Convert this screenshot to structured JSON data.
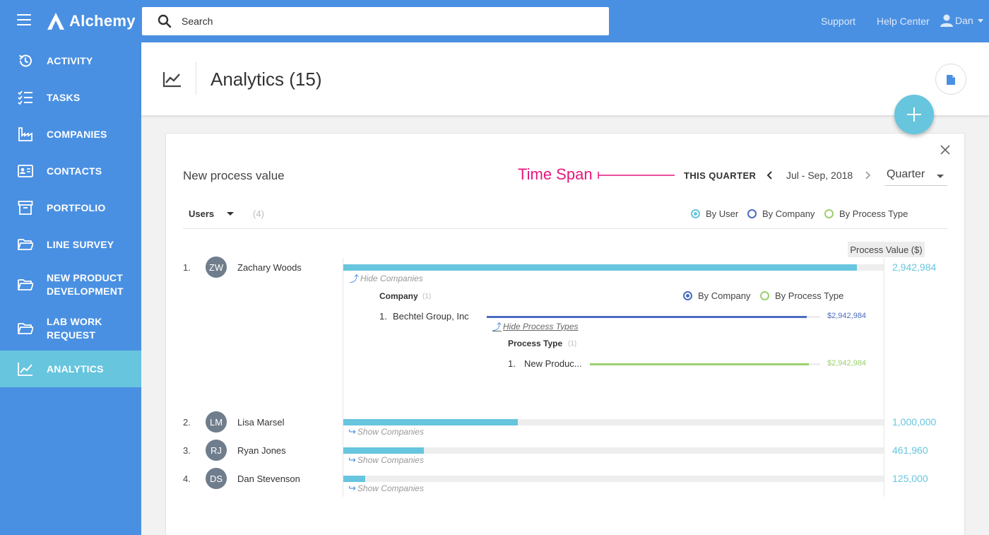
{
  "app": {
    "name": "Alchemy"
  },
  "search": {
    "placeholder": "Search"
  },
  "topnav": {
    "support": "Support",
    "help": "Help Center",
    "user": "Dan"
  },
  "sidebar": {
    "items": [
      {
        "label": "ACTIVITY"
      },
      {
        "label": "TASKS"
      },
      {
        "label": "COMPANIES"
      },
      {
        "label": "CONTACTS"
      },
      {
        "label": "PORTFOLIO"
      },
      {
        "label": "LINE SURVEY"
      },
      {
        "label": "NEW PRODUCT DEVELOPMENT"
      },
      {
        "label": "LAB WORK REQUEST"
      },
      {
        "label": "ANALYTICS"
      }
    ]
  },
  "page": {
    "title": "Analytics (15)"
  },
  "card": {
    "title": "New process value",
    "annotation": "Time Span",
    "period_label": "THIS QUARTER",
    "range": "Jul - Sep, 2018",
    "period_select": "Quarter",
    "group_select": "Users",
    "group_count": "(4)",
    "radios": {
      "by_user": "By User",
      "by_company": "By Company",
      "by_process_type": "By Process Type"
    },
    "value_header": "Process Value ($)",
    "hide_companies": "Hide Companies",
    "show_companies": "Show Companies",
    "rows": [
      {
        "rank": "1.",
        "initials": "ZW",
        "name": "Zachary Woods",
        "value": "2,942,984",
        "fraction": 0.9497
      },
      {
        "rank": "2.",
        "initials": "LM",
        "name": "Lisa Marsel",
        "value": "1,000,000",
        "fraction": 0.3229
      },
      {
        "rank": "3.",
        "initials": "RJ",
        "name": "Ryan Jones",
        "value": "461,960",
        "fraction": 0.1496
      },
      {
        "rank": "4.",
        "initials": "DS",
        "name": "Dan Stevenson",
        "value": "125,000",
        "fraction": 0.0404
      }
    ],
    "company_section": {
      "header": "Company",
      "count": "(1)",
      "radio_company": "By Company",
      "radio_process": "By Process Type",
      "item_rank": "1.",
      "item_name": "Bechtel Group, Inc",
      "item_value": "$2,942,984",
      "item_fraction": 0.96,
      "hide_process_types": "Hide Process Types"
    },
    "process_section": {
      "header": "Process Type",
      "count": "(1)",
      "item_rank": "1.",
      "item_name": "New Produc...",
      "item_value": "$2,942,984",
      "item_fraction": 0.95
    }
  },
  "colors": {
    "brand": "#4a90e2",
    "accent": "#67c5de",
    "annotation": "#e5177b",
    "company": "#4a6cc0",
    "process": "#9bd06e"
  }
}
